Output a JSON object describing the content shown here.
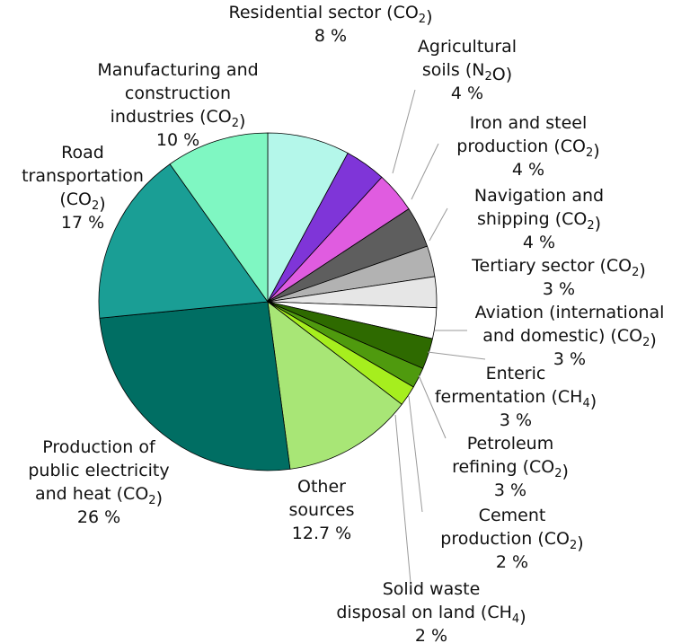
{
  "chart_data": {
    "type": "pie",
    "title": "",
    "slices": [
      {
        "label": [
          "Residential sector (CO{2})",
          "8 %"
        ],
        "value": 8,
        "color": "#b4f7ea"
      },
      {
        "label": [
          "Agricultural",
          "soils (N{2}O)",
          "4 %"
        ],
        "value": 4,
        "color": "#7f35d8"
      },
      {
        "label": [
          "Iron and steel",
          "production (CO{2})",
          "4 %"
        ],
        "value": 4,
        "color": "#e05ce0"
      },
      {
        "label": [
          "Navigation and",
          "shipping (CO{2})",
          "4 %"
        ],
        "value": 4,
        "color": "#5e5e5e"
      },
      {
        "label": [
          "Tertiary sector (CO{2})",
          "3 %"
        ],
        "value": 3,
        "color": "#b2b2b2"
      },
      {
        "label": [
          "Aviation (international",
          "and domestic) (CO{2})",
          "3 %"
        ],
        "value": 3,
        "color": "#e6e6e6"
      },
      {
        "label": [
          "Enteric",
          "fermentation (CH{4})",
          "3 %"
        ],
        "value": 3,
        "color": "#ffffff"
      },
      {
        "label": [
          "Petroleum",
          "refining (CO{2})",
          "3 %"
        ],
        "value": 3,
        "color": "#2e6a00"
      },
      {
        "label": [
          "Cement",
          "production (CO{2})",
          "2 %"
        ],
        "value": 2,
        "color": "#4f9a0e"
      },
      {
        "label": [
          "Solid waste",
          "disposal on land (CH{4})",
          "2 %"
        ],
        "value": 2,
        "color": "#a6ee1e"
      },
      {
        "label": [
          "Other",
          "sources",
          "12.7 %"
        ],
        "value": 12.7,
        "color": "#a8e676"
      },
      {
        "label": [
          "Production of",
          "public electricity",
          "and heat (CO{2})",
          "26 %"
        ],
        "value": 26,
        "color": "#006e63"
      },
      {
        "label": [
          "Road",
          "transportation",
          "(CO{2})",
          "17 %"
        ],
        "value": 17,
        "color": "#1a9e95"
      },
      {
        "label": [
          "Manufacturing and",
          "construction",
          "industries (CO{2})",
          "10 %"
        ],
        "value": 10,
        "color": "#7ff7c2"
      }
    ]
  }
}
